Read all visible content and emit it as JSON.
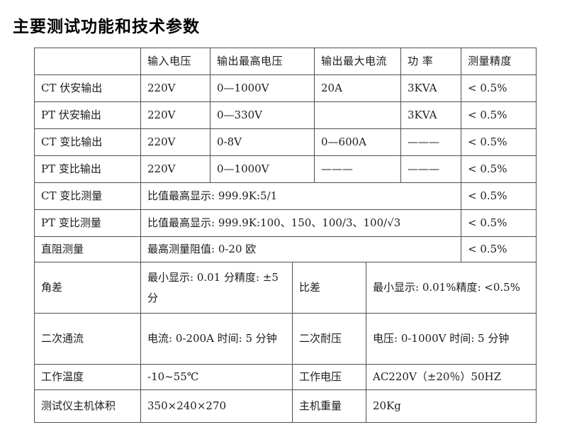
{
  "page": {
    "title": "主要测试功能和技术参数"
  },
  "colors": {
    "border": "#4f4f4f",
    "text": "#1c1c1c",
    "background": "#ffffff"
  },
  "table": {
    "headers": {
      "blank": "",
      "input_voltage": "输入电压",
      "max_output_voltage": "输出最高电压",
      "max_output_current": "输出最大电流",
      "power": "功 率",
      "accuracy": "测量精度"
    },
    "output_rows": [
      {
        "label": "CT 伏安输出",
        "input_voltage": "220V",
        "max_output_voltage": "0—1000V",
        "max_output_current": "20A",
        "power": "3KVA",
        "accuracy": "< 0.5%"
      },
      {
        "label": "PT 伏安输出",
        "input_voltage": "220V",
        "max_output_voltage": "0—330V",
        "max_output_current": "",
        "power": "3KVA",
        "accuracy": "< 0.5%"
      },
      {
        "label": "CT 变比输出",
        "input_voltage": "220V",
        "max_output_voltage": "0-8V",
        "max_output_current": "0—600A",
        "power": "———",
        "accuracy": "< 0.5%"
      },
      {
        "label": "PT 变比输出",
        "input_voltage": "220V",
        "max_output_voltage": "0—1000V",
        "max_output_current": "———",
        "power": "———",
        "accuracy": "< 0.5%"
      }
    ],
    "measure_rows": [
      {
        "label": "CT 变比测量",
        "value": "比值最高显示: 999.9K:5/1",
        "accuracy": "< 0.5%"
      },
      {
        "label": "PT 变比测量",
        "value": "比值最高显示: 999.9K:100、150、100/3、100/√3",
        "accuracy": "< 0.5%"
      },
      {
        "label": "直阻测量",
        "value": "最高测量阻值: 0-20 欧",
        "accuracy": "< 0.5%"
      }
    ],
    "pair_rows": [
      {
        "label1": "角差",
        "value1": "最小显示: 0.01 分精度: ±5 分",
        "label2": "比差",
        "value2": "最小显示: 0.01%精度: <0.5%"
      },
      {
        "label1": "二次通流",
        "value1": "电流: 0-200A 时间: 5 分钟",
        "label2": "二次耐压",
        "value2": "电压: 0-1000V 时间: 5 分钟"
      },
      {
        "label1": "工作温度",
        "value1": "-10~55℃",
        "label2": "工作电压",
        "value2": "AC220V（±20％）50HZ"
      },
      {
        "label1": "测试仪主机体积",
        "value1": "350×240×270",
        "label2": "主机重量",
        "value2": "20Kg"
      }
    ]
  }
}
